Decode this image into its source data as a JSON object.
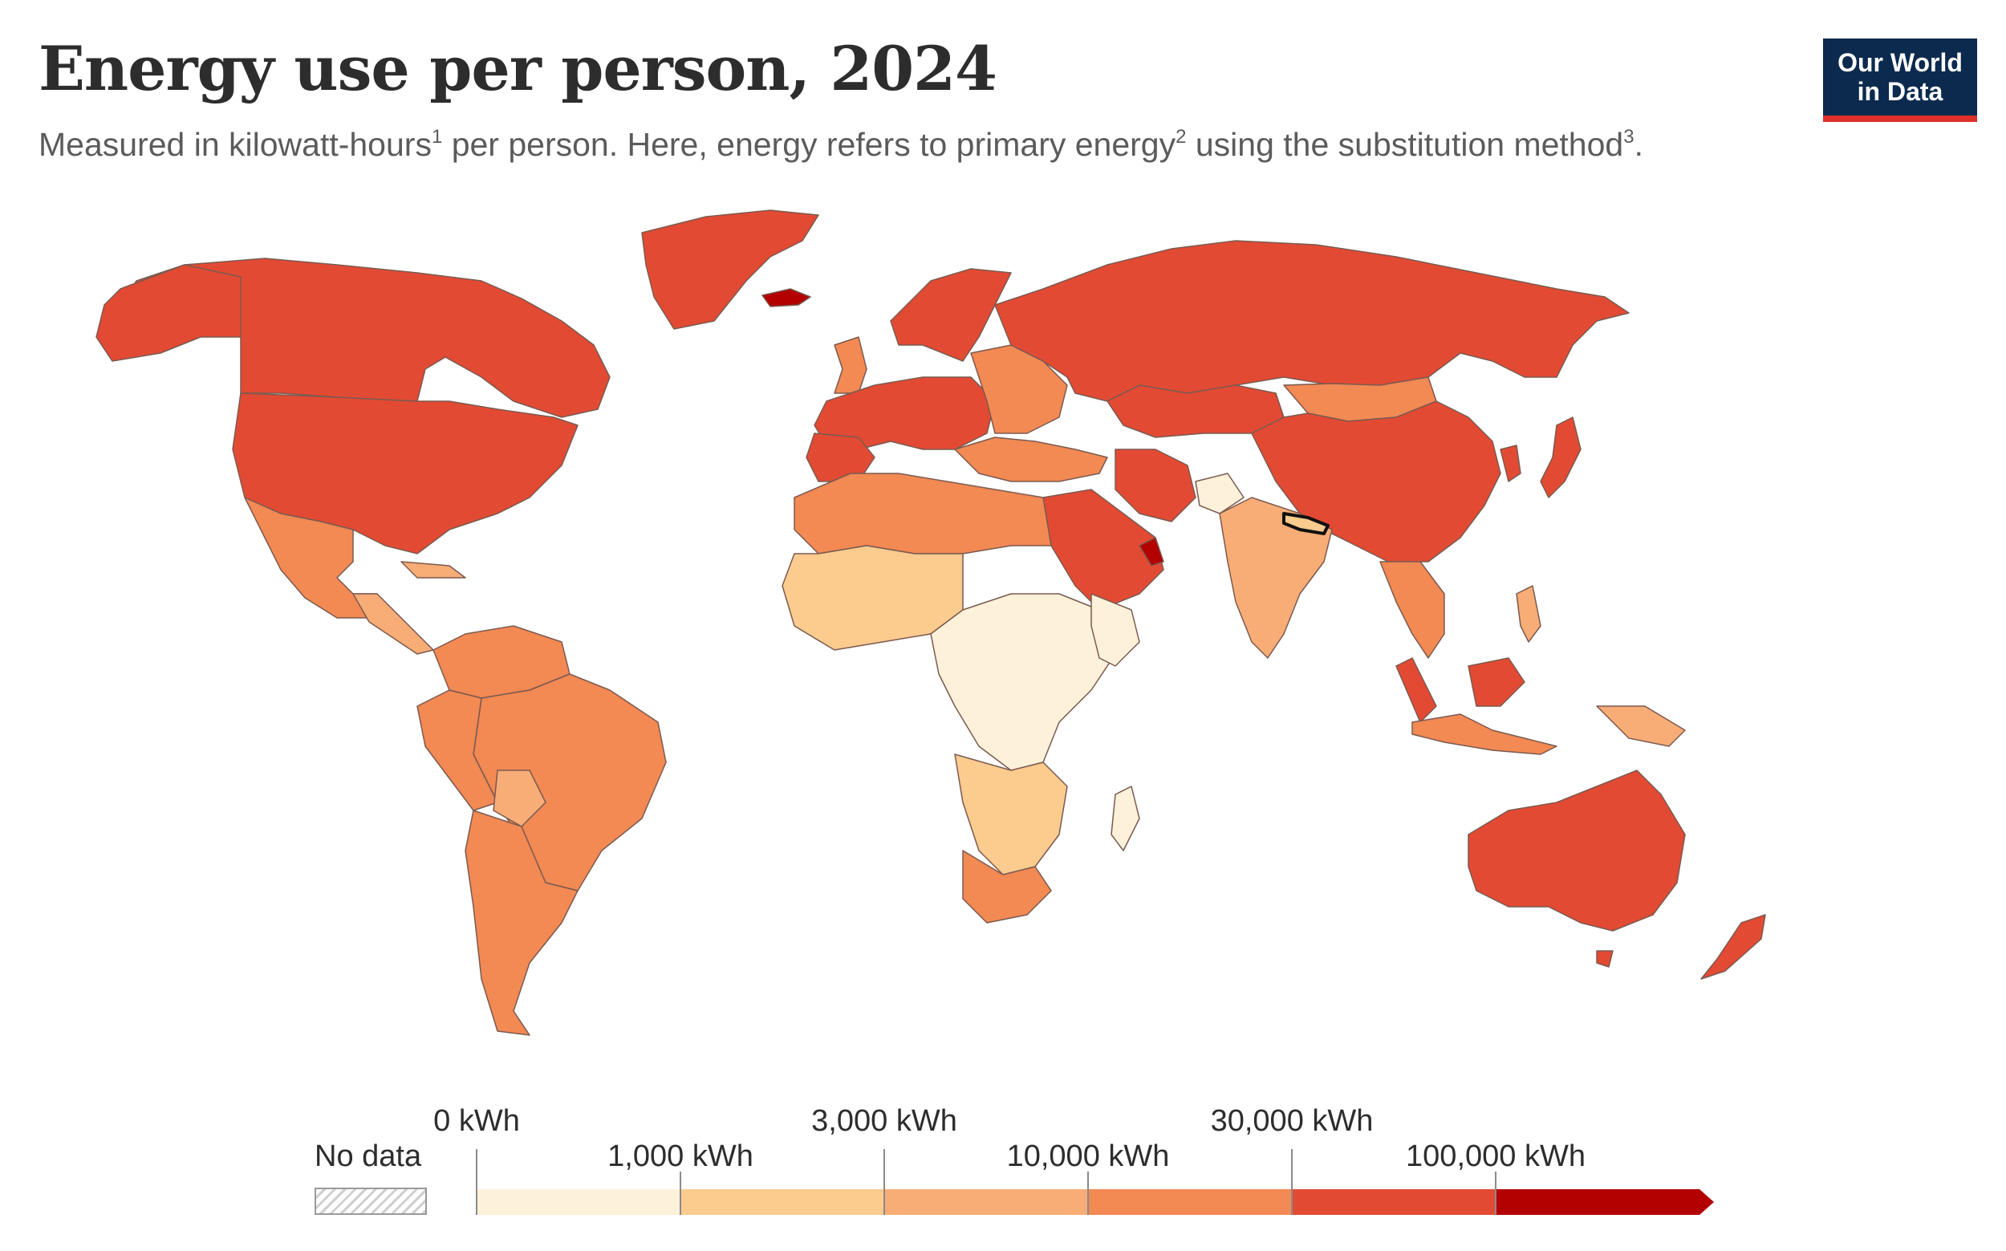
{
  "header": {
    "title": "Energy use per person, 2024",
    "subtitle_parts": [
      "Measured in kilowatt-hours",
      "1",
      " per person. Here, energy refers to primary energy",
      "2",
      " using the substitution method",
      "3",
      "."
    ]
  },
  "logo": {
    "line1": "Our World",
    "line2": "in Data"
  },
  "legend": {
    "no_data_label": "No data",
    "bins": [
      {
        "from": "0 kWh",
        "to": "1,000 kWh",
        "color": "#fdf1d9"
      },
      {
        "from": "1,000 kWh",
        "to": "3,000 kWh",
        "color": "#fccb8e"
      },
      {
        "from": "3,000 kWh",
        "to": "10,000 kWh",
        "color": "#f8ad76"
      },
      {
        "from": "10,000 kWh",
        "to": "30,000 kWh",
        "color": "#f38953"
      },
      {
        "from": "30,000 kWh",
        "to": "100,000 kWh",
        "color": "#e34a33"
      },
      {
        "from": "100,000 kWh",
        "to": "",
        "color": "#b30000"
      }
    ],
    "upper_labels": [
      "0 kWh",
      "3,000 kWh",
      "30,000 kWh"
    ],
    "lower_labels": [
      "1,000 kWh",
      "10,000 kWh",
      "100,000 kWh"
    ]
  },
  "colors": {
    "bin0": "#fdf1d9",
    "bin1": "#fccb8e",
    "bin2": "#f8ad76",
    "bin3": "#f38953",
    "bin4": "#e34a33",
    "bin5": "#b30000",
    "border": "#7a5a50"
  }
}
